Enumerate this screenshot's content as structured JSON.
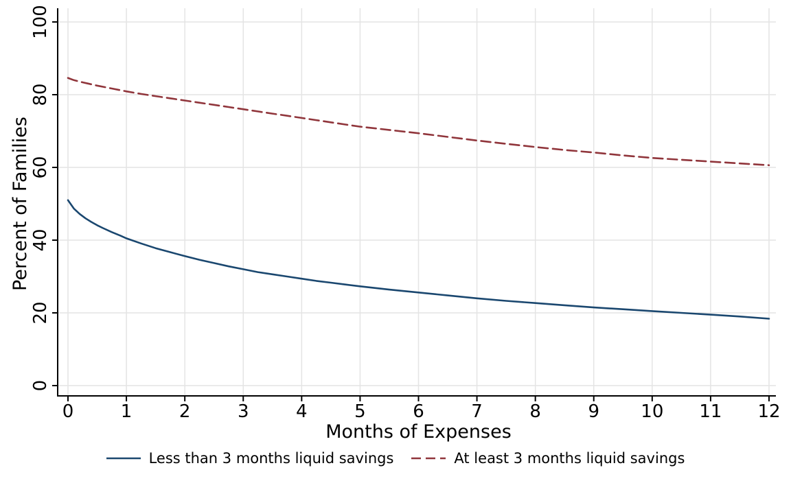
{
  "figure": {
    "background_color": "#ffffff",
    "text_color": "#000000"
  },
  "chart_data": {
    "type": "line",
    "title": "",
    "xlabel": "Months of Expenses",
    "ylabel": "Percent of Families",
    "xlim": [
      0,
      12
    ],
    "ylim": [
      0,
      100
    ],
    "xticks": [
      0,
      1,
      2,
      3,
      4,
      5,
      6,
      7,
      8,
      9,
      10,
      11,
      12
    ],
    "yticks": [
      0,
      20,
      40,
      60,
      80,
      100
    ],
    "grid": "both",
    "gridline_color": "#e4e4e4",
    "axis_color": "#000000",
    "legend_position": "bottom-center",
    "series": [
      {
        "name": "Less than 3 months liquid savings",
        "color": "#1a476f",
        "line_style": "solid",
        "line_width": 2.6,
        "x": [
          0,
          0.1,
          0.2,
          0.3,
          0.4,
          0.5,
          0.6,
          0.75,
          0.9,
          1,
          1.25,
          1.5,
          1.75,
          2,
          2.25,
          2.5,
          2.75,
          3,
          3.25,
          3.5,
          3.75,
          4,
          4.25,
          4.5,
          4.75,
          5,
          5.5,
          6,
          6.5,
          7,
          7.5,
          8,
          8.5,
          9,
          9.5,
          10,
          10.5,
          11,
          11.5,
          12
        ],
        "y": [
          51.0,
          48.7,
          47.2,
          46.0,
          45.0,
          44.1,
          43.3,
          42.2,
          41.2,
          40.5,
          39.1,
          37.8,
          36.7,
          35.6,
          34.6,
          33.7,
          32.8,
          32.0,
          31.2,
          30.6,
          30.0,
          29.4,
          28.8,
          28.3,
          27.8,
          27.3,
          26.4,
          25.6,
          24.8,
          24.0,
          23.3,
          22.7,
          22.1,
          21.5,
          21.0,
          20.5,
          20.0,
          19.5,
          19.0,
          18.4
        ]
      },
      {
        "name": "At least 3 months liquid savings",
        "color": "#90353b",
        "line_style": "dashed",
        "dash_pattern": [
          14,
          7
        ],
        "line_width": 2.6,
        "x": [
          0,
          0.1,
          0.25,
          0.5,
          0.75,
          1,
          1.25,
          1.5,
          1.75,
          2,
          2.25,
          2.5,
          2.75,
          3,
          3.25,
          3.5,
          3.75,
          4,
          4.25,
          4.5,
          4.75,
          5,
          5.5,
          6,
          6.5,
          7,
          7.5,
          8,
          8.5,
          9,
          9.5,
          10,
          10.5,
          11,
          11.5,
          12
        ],
        "y": [
          84.6,
          84.0,
          83.4,
          82.5,
          81.7,
          80.9,
          80.2,
          79.6,
          79.0,
          78.4,
          77.8,
          77.2,
          76.6,
          76.0,
          75.4,
          74.8,
          74.2,
          73.6,
          73.0,
          72.4,
          71.8,
          71.2,
          70.3,
          69.4,
          68.4,
          67.4,
          66.5,
          65.6,
          64.8,
          64.1,
          63.3,
          62.6,
          62.1,
          61.6,
          61.1,
          60.6
        ]
      }
    ]
  }
}
